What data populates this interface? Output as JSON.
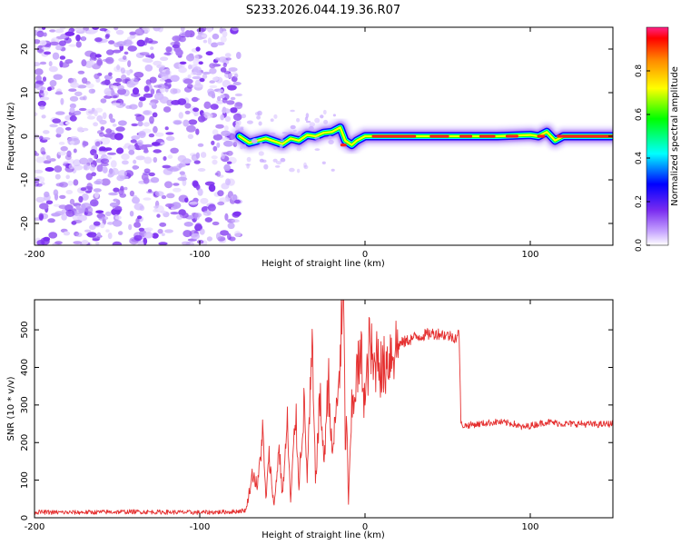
{
  "title": "S233.2026.044.19.36.R07",
  "colors": {
    "snr_line": "#e53030",
    "scatter_dot": "#7a2cf0",
    "frame": "#000000"
  },
  "chart_data": [
    {
      "type": "heatmap",
      "xlabel": "Height of straight line (km)",
      "ylabel": "Frequency (Hz)",
      "xlim": [
        -200,
        150
      ],
      "ylim": [
        -25,
        25
      ],
      "xticks": [
        -200,
        -100,
        0,
        100
      ],
      "xtick_labels": [
        "-200",
        "-100",
        "0",
        "100"
      ],
      "yticks": [
        20,
        10,
        0,
        -10,
        -20
      ],
      "ytick_labels": [
        "20",
        "10",
        "0",
        "-10",
        "-20"
      ],
      "regions": [
        {
          "name": "noise",
          "x_range": [
            -200,
            -76
          ],
          "y_range": [
            -25,
            25
          ],
          "amplitude_range": [
            0.1,
            0.25
          ]
        },
        {
          "name": "signal-ridge",
          "x_range": [
            -76,
            150
          ],
          "center_freq_hz": 0,
          "amplitude_range": [
            0.3,
            1.0
          ]
        }
      ],
      "ridge": {
        "x": [
          -76,
          -70,
          -60,
          -50,
          -45,
          -40,
          -35,
          -30,
          -25,
          -20,
          -15,
          -12,
          -8,
          -5,
          0,
          10,
          30,
          60,
          80,
          100,
          105,
          110,
          115,
          120,
          150
        ],
        "freq": [
          0,
          -1.5,
          -0.5,
          -1.8,
          -0.5,
          -1,
          0.3,
          0,
          0.8,
          1,
          2,
          -1,
          -2,
          -1,
          0,
          0,
          0,
          0,
          0,
          0.3,
          0,
          1,
          -1,
          0,
          0
        ]
      },
      "colorbar": {
        "label": "Normalized spectral amplitude",
        "range": [
          0,
          1
        ],
        "ticks": [
          0.0,
          0.2,
          0.4,
          0.6,
          0.8
        ],
        "tick_labels": [
          "0.0",
          "0.2",
          "0.4",
          "0.6",
          "0.8"
        ],
        "colormap": [
          "#ffffff",
          "#7a2cf0",
          "#0000ff",
          "#00ffff",
          "#00ff00",
          "#ffff00",
          "#ff8800",
          "#ff0000",
          "#ff2288"
        ]
      }
    },
    {
      "type": "line",
      "xlabel": "Height of straight line (km)",
      "ylabel": "SNR (10 * v/v)",
      "xlim": [
        -200,
        150
      ],
      "ylim": [
        0,
        580
      ],
      "xticks": [
        -200,
        -100,
        0,
        100
      ],
      "xtick_labels": [
        "-200",
        "-100",
        "0",
        "100"
      ],
      "yticks": [
        0,
        100,
        200,
        300,
        400,
        500
      ],
      "ytick_labels": [
        "0",
        "100",
        "200",
        "300",
        "400",
        "500"
      ],
      "series": [
        {
          "name": "SNR",
          "x": [
            -200,
            -180,
            -160,
            -140,
            -120,
            -100,
            -90,
            -80,
            -72,
            -68,
            -65,
            -62,
            -60,
            -58,
            -55,
            -52,
            -50,
            -47,
            -45,
            -42,
            -40,
            -37,
            -35,
            -32,
            -30,
            -27,
            -25,
            -22,
            -20,
            -17,
            -15,
            -13,
            -12,
            -11,
            -10,
            -8,
            -5,
            -2,
            0,
            3,
            5,
            8,
            10,
            15,
            20,
            25,
            30,
            35,
            40,
            45,
            50,
            55,
            57,
            58,
            60,
            70,
            80,
            90,
            95,
            100,
            110,
            120,
            130,
            140,
            150
          ],
          "y": [
            15,
            14,
            15,
            16,
            15,
            14,
            15,
            16,
            20,
            120,
            80,
            230,
            50,
            160,
            30,
            190,
            60,
            250,
            40,
            280,
            90,
            300,
            110,
            440,
            100,
            330,
            140,
            380,
            160,
            300,
            430,
            580,
            200,
            250,
            40,
            280,
            380,
            420,
            300,
            480,
            380,
            460,
            380,
            440,
            460,
            470,
            480,
            485,
            490,
            490,
            485,
            480,
            490,
            250,
            245,
            250,
            255,
            250,
            240,
            245,
            255,
            250,
            250,
            248,
            250
          ]
        }
      ]
    }
  ]
}
